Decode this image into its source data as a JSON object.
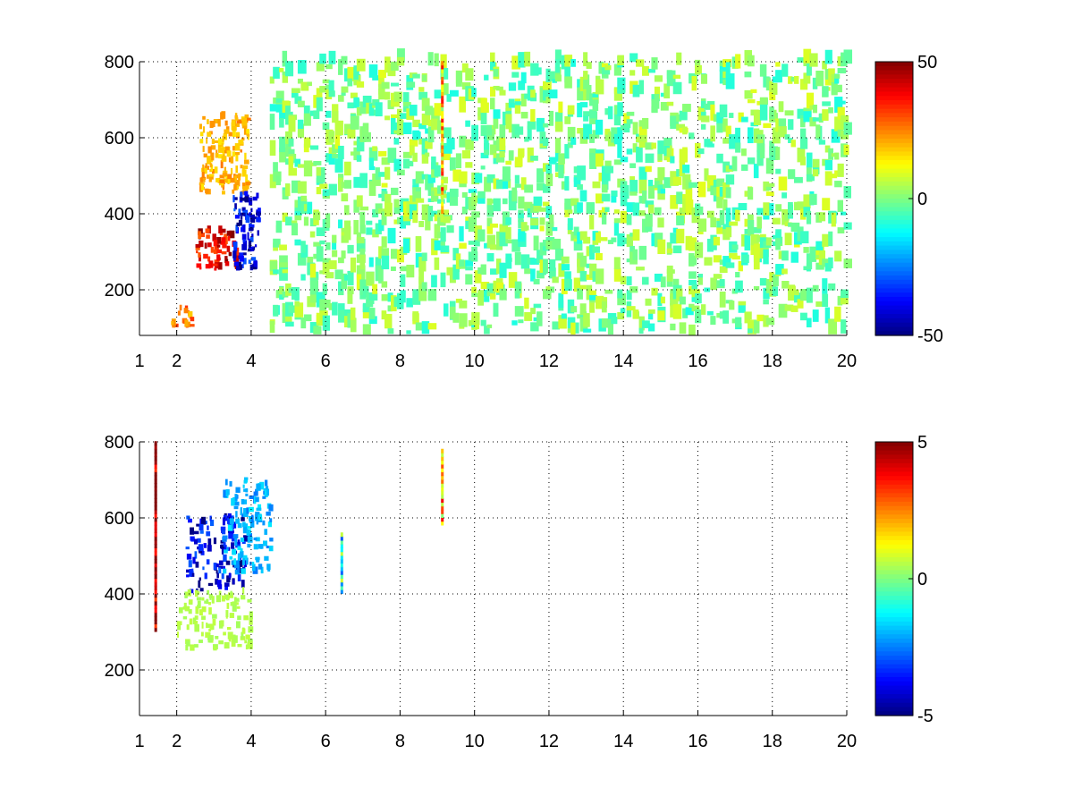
{
  "chart_data": [
    {
      "type": "heatmap",
      "title": "",
      "xlabel": "",
      "ylabel": "",
      "xlim": [
        1,
        20
      ],
      "ylim": [
        80,
        800
      ],
      "x_ticks": [
        1,
        2,
        4,
        6,
        8,
        10,
        12,
        14,
        16,
        18,
        20
      ],
      "y_ticks": [
        200,
        400,
        600,
        800
      ],
      "grid": true,
      "colormap": "jet",
      "colorbar": {
        "min": -50,
        "max": 50,
        "labels": [
          "50",
          "0",
          "-50"
        ]
      },
      "features": [
        {
          "kind": "blob",
          "x": [
            2.5,
            3.6
          ],
          "y": [
            250,
            350
          ],
          "value": 40
        },
        {
          "kind": "blob",
          "x": [
            2.6,
            3.9
          ],
          "y": [
            450,
            650
          ],
          "value": 20
        },
        {
          "kind": "blob",
          "x": [
            3.5,
            4.2
          ],
          "y": [
            250,
            450
          ],
          "value": -40
        },
        {
          "kind": "blob",
          "x": [
            1.8,
            2.4
          ],
          "y": [
            100,
            150
          ],
          "value": 25
        },
        {
          "kind": "scatter",
          "x": [
            4.5,
            20
          ],
          "y": [
            80,
            800
          ],
          "value_range": [
            -10,
            10
          ],
          "density": 0.25
        },
        {
          "kind": "line",
          "x": 9.1,
          "y": [
            400,
            800
          ],
          "value": 20
        }
      ]
    },
    {
      "type": "heatmap",
      "title": "",
      "xlabel": "",
      "ylabel": "",
      "xlim": [
        1,
        20
      ],
      "ylim": [
        80,
        800
      ],
      "x_ticks": [
        1,
        2,
        4,
        6,
        8,
        10,
        12,
        14,
        16,
        18,
        20
      ],
      "y_ticks": [
        200,
        400,
        600,
        800
      ],
      "grid": true,
      "colormap": "jet",
      "colorbar": {
        "min": -5,
        "max": 5,
        "labels": [
          "5",
          "0",
          "-5"
        ]
      },
      "features": [
        {
          "kind": "blob",
          "x": [
            2.2,
            3.8
          ],
          "y": [
            400,
            600
          ],
          "value": -4
        },
        {
          "kind": "blob",
          "x": [
            3.2,
            4.5
          ],
          "y": [
            450,
            700
          ],
          "value": -2
        },
        {
          "kind": "blob",
          "x": [
            2,
            4
          ],
          "y": [
            250,
            400
          ],
          "value": 0.5
        },
        {
          "kind": "line",
          "x": 1.4,
          "y": [
            300,
            800
          ],
          "value": 5
        },
        {
          "kind": "line",
          "x": 9.1,
          "y": [
            580,
            780
          ],
          "value": 2
        },
        {
          "kind": "line",
          "x": 6.4,
          "y": [
            400,
            560
          ],
          "value": -1
        }
      ]
    }
  ]
}
